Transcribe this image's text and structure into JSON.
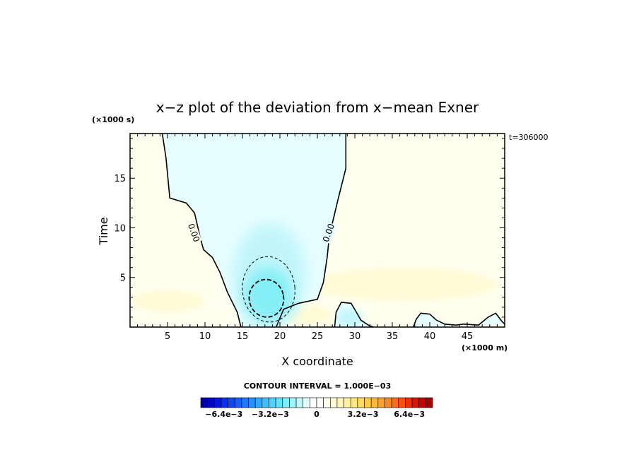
{
  "chart_data": {
    "type": "contour",
    "title": "x−z plot of the deviation from x−mean Exner",
    "xlabel": "X coordinate",
    "ylabel": "Time",
    "x_unit": "(×1000 m)",
    "y_unit": "(×1000 s)",
    "timestamp": "t=306000",
    "xlim": [
      0,
      50
    ],
    "ylim": [
      0,
      19.5
    ],
    "x_ticks": [
      5,
      10,
      15,
      20,
      25,
      30,
      35,
      40,
      45
    ],
    "x_tick_labels": [
      "5",
      "10",
      "15",
      "20",
      "25",
      "30",
      "35",
      "40",
      "45"
    ],
    "y_ticks": [
      5,
      10,
      15
    ],
    "y_tick_labels": [
      "5",
      "10",
      "15"
    ],
    "contour_interval_text": "CONTOUR INTERVAL = 1.000E−03",
    "contour_interval": 0.001,
    "contour_labels": [
      {
        "text": "0.00",
        "x": 8.5,
        "y": 9.5,
        "angle": 70
      },
      {
        "text": "0.00",
        "x": 26.5,
        "y": 9.5,
        "angle": -70
      }
    ],
    "zero_contours": [
      {
        "name": "left",
        "points": [
          [
            4.3,
            19.5
          ],
          [
            4.8,
            17.0
          ],
          [
            5.3,
            13.0
          ],
          [
            7.5,
            12.5
          ],
          [
            8.6,
            11.5
          ],
          [
            9.3,
            9.2
          ],
          [
            9.8,
            7.8
          ],
          [
            11.0,
            7.0
          ],
          [
            12.0,
            5.5
          ],
          [
            13.0,
            3.5
          ],
          [
            14.3,
            1.5
          ],
          [
            14.8,
            0
          ]
        ]
      },
      {
        "name": "right",
        "points": [
          [
            28.8,
            19.5
          ],
          [
            28.8,
            16.0
          ],
          [
            27.8,
            13.0
          ],
          [
            26.6,
            9.2
          ],
          [
            26.3,
            7.0
          ],
          [
            25.8,
            4.5
          ],
          [
            25.0,
            2.8
          ],
          [
            22.5,
            2.4
          ],
          [
            20.5,
            1.8
          ],
          [
            19.5,
            0
          ]
        ]
      },
      {
        "name": "bump-30",
        "points": [
          [
            27.3,
            0
          ],
          [
            27.5,
            1.5
          ],
          [
            28.2,
            2.5
          ],
          [
            29.5,
            2.4
          ],
          [
            30.2,
            1.5
          ],
          [
            30.8,
            0.7
          ],
          [
            31.8,
            0.2
          ],
          [
            32.5,
            0
          ]
        ]
      },
      {
        "name": "bump-40",
        "points": [
          [
            37.8,
            0
          ],
          [
            38.2,
            0.8
          ],
          [
            38.8,
            1.4
          ],
          [
            40.0,
            1.3
          ],
          [
            40.9,
            0.7
          ],
          [
            42.0,
            0.3
          ],
          [
            43.5,
            0.2
          ],
          [
            44.5,
            0.3
          ],
          [
            46.5,
            0.2
          ],
          [
            47.8,
            1.0
          ],
          [
            48.8,
            1.4
          ],
          [
            49.6,
            0.6
          ],
          [
            50,
            0.3
          ]
        ]
      }
    ],
    "negative_contours": [
      {
        "level": -0.001,
        "style": "thin-dashed",
        "center": [
          18.5,
          3.8
        ],
        "rx": 3.5,
        "ry": 3.3
      },
      {
        "level": -0.002,
        "style": "thick-dashed",
        "center": [
          18.2,
          2.9
        ],
        "rx": 2.3,
        "ry": 1.9
      }
    ],
    "fill_regions": [
      {
        "kind": "negative-weak",
        "color": "#e6fdff"
      },
      {
        "kind": "negative-medium",
        "color": "#c2f6fb"
      },
      {
        "kind": "negative-strong",
        "color": "#84eff6"
      },
      {
        "kind": "positive-weak",
        "color": "#fffff0"
      },
      {
        "kind": "positive-band",
        "color": "#fffbd6"
      }
    ],
    "colorbar": {
      "colors": [
        "#0000aa",
        "#0008c4",
        "#0018dc",
        "#0830ee",
        "#1048f6",
        "#1860fa",
        "#2078fc",
        "#2890fe",
        "#30a8ff",
        "#3cc0ff",
        "#4cd4ff",
        "#60e4fc",
        "#7eeefa",
        "#a0f4fb",
        "#c2f8fc",
        "#e2fdfe",
        "#ffffff",
        "#ffffff",
        "#fffff0",
        "#fffbd6",
        "#fff6b8",
        "#fff09a",
        "#ffe87c",
        "#ffdc60",
        "#ffcc48",
        "#ffb838",
        "#ffa02c",
        "#ff8822",
        "#ff6c18",
        "#f84e10",
        "#ee300a",
        "#dc1406",
        "#c40404",
        "#a80000"
      ],
      "tick_labels": [
        "−6.4e−3",
        "−3.2e−3",
        "0",
        "3.2e−3",
        "6.4e−3"
      ],
      "tick_values": [
        -0.0064,
        -0.0032,
        0,
        0.0032,
        0.0064
      ],
      "range": [
        -0.008,
        0.008
      ]
    }
  }
}
